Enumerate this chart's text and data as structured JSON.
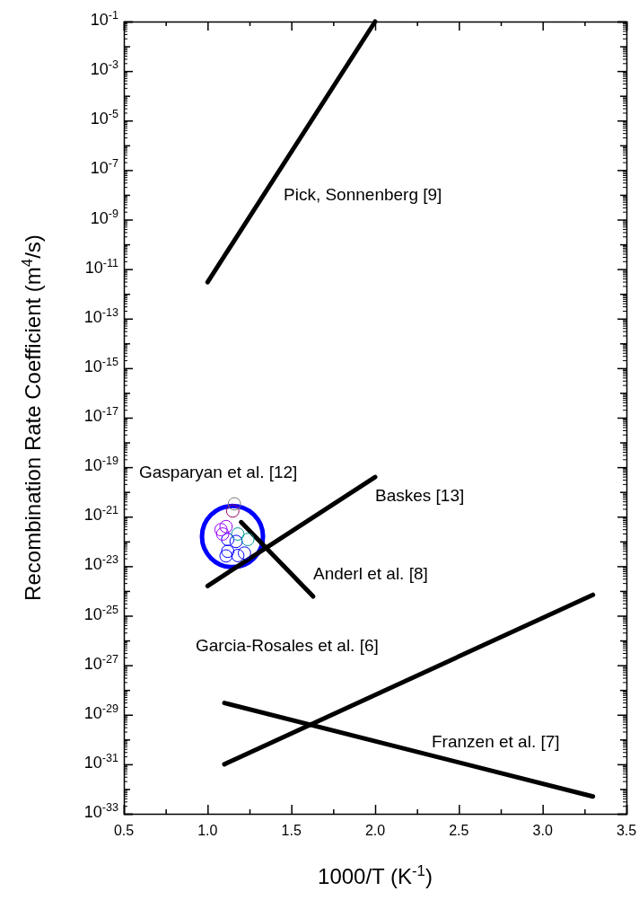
{
  "chart_data": {
    "type": "line",
    "xlabel": "1000/T (K$^{-1}$)",
    "ylabel": "Recombination Rate Coefficient (m$^{4}$/s)",
    "log": "y",
    "xlim": [
      0.5,
      3.5
    ],
    "ylim": [
      1e-33,
      0.1
    ],
    "xticks": [
      {
        "value": 0.5,
        "label": "0.5"
      },
      {
        "value": 0.75,
        "label": null
      },
      {
        "value": 1,
        "label": "1.0"
      },
      {
        "value": 1.25,
        "label": null
      },
      {
        "value": 1.5,
        "label": "1.5"
      },
      {
        "value": 1.75,
        "label": null
      },
      {
        "value": 2,
        "label": "2.0"
      },
      {
        "value": 2.25,
        "label": null
      },
      {
        "value": 2.5,
        "label": "2.5"
      },
      {
        "value": 2.75,
        "label": null
      },
      {
        "value": 3,
        "label": "3.0"
      },
      {
        "value": 3.25,
        "label": null
      },
      {
        "value": 3.5,
        "label": "3.5"
      }
    ],
    "yticks": [
      {
        "value": 1e-33,
        "label": "10$^{-33}$"
      },
      {
        "value": 1e-32,
        "label": null
      },
      {
        "value": 1e-31,
        "label": "10$^{-31}$"
      },
      {
        "value": 1e-30,
        "label": null
      },
      {
        "value": 1e-29,
        "label": "10$^{-29}$"
      },
      {
        "value": 1e-28,
        "label": null
      },
      {
        "value": 1e-27,
        "label": "10$^{-27}$"
      },
      {
        "value": 1e-26,
        "label": null
      },
      {
        "value": 1e-25,
        "label": "10$^{-25}$"
      },
      {
        "value": 1e-24,
        "label": null
      },
      {
        "value": 1e-23,
        "label": "10$^{-23}$"
      },
      {
        "value": 1e-22,
        "label": null
      },
      {
        "value": 1e-21,
        "label": "10$^{-21}$"
      },
      {
        "value": 1e-20,
        "label": null
      },
      {
        "value": 1e-19,
        "label": "10$^{-19}$"
      },
      {
        "value": 1e-18,
        "label": null
      },
      {
        "value": 1e-17,
        "label": "10$^{-17}$"
      },
      {
        "value": 1e-16,
        "label": null
      },
      {
        "value": 1e-15,
        "label": "10$^{-15}$"
      },
      {
        "value": 1e-14,
        "label": null
      },
      {
        "value": 1e-13,
        "label": "10$^{-13}$"
      },
      {
        "value": 1e-12,
        "label": null
      },
      {
        "value": 1e-11,
        "label": "10$^{-11}$"
      },
      {
        "value": 1e-10,
        "label": null
      },
      {
        "value": 1e-09,
        "label": "10$^{-9}$"
      },
      {
        "value": 1e-08,
        "label": null
      },
      {
        "value": 1e-07,
        "label": "10$^{-7}$"
      },
      {
        "value": 1e-06,
        "label": null
      },
      {
        "value": 1e-05,
        "label": "10$^{-5}$"
      },
      {
        "value": 0.0001,
        "label": null
      },
      {
        "value": 0.001,
        "label": "10$^{-3}$"
      },
      {
        "value": 0.01,
        "label": null
      },
      {
        "value": 0.1,
        "label": "10$^{-1}$"
      }
    ],
    "series": [
      {
        "color": "#000000",
        "x": [
          1.0,
          2.0
        ],
        "values": [
          3e-12,
          0.1
        ]
      },
      {
        "color": "#000000",
        "x": [
          1.0,
          2.0
        ],
        "values": [
          1.6e-24,
          4e-20
        ]
      },
      {
        "color": "#000000",
        "x": [
          1.2,
          1.63
        ],
        "values": [
          6e-22,
          6e-25
        ]
      },
      {
        "color": "#000000",
        "x": [
          1.1,
          3.3
        ],
        "values": [
          1e-31,
          7e-25
        ]
      },
      {
        "color": "#000000",
        "x": [
          1.1,
          3.3
        ],
        "values": [
          3e-29,
          5e-33
        ]
      },
      {
        "type": "scatter",
        "marker": "circle",
        "color": "#0000ff",
        "x": [
          1.12,
          1.17,
          1.12,
          1.22,
          1.18,
          1.11
        ],
        "values": [
          1.2e-22,
          1e-22,
          4e-23,
          3.4e-23,
          2.7e-23,
          2.6e-23
        ]
      },
      {
        "type": "scatter",
        "marker": "circle",
        "color": "#9900ff",
        "x": [
          1.11,
          1.08,
          1.09
        ],
        "values": [
          4e-22,
          3e-22,
          2e-22
        ]
      },
      {
        "type": "scatter",
        "marker": "circle",
        "color": "#009999",
        "x": [
          1.18,
          1.24
        ],
        "values": [
          2e-22,
          1.2e-22
        ]
      },
      {
        "type": "scatter",
        "marker": "circle",
        "color": "#990066",
        "x": [
          1.15
        ],
        "values": [
          1.7e-21
        ]
      },
      {
        "type": "scatter",
        "marker": "circle",
        "color": "#777777",
        "x": [
          1.16
        ],
        "values": [
          3.3e-21
        ]
      }
    ],
    "annotations": [
      "Pick, Sonnenberg [9]",
      "Gasparyan et al. [12]",
      "Baskes [13]",
      "Anderl et al. [8]",
      "Garcia-Rosales et al. [6]",
      "Franzen et al. [7]"
    ]
  }
}
